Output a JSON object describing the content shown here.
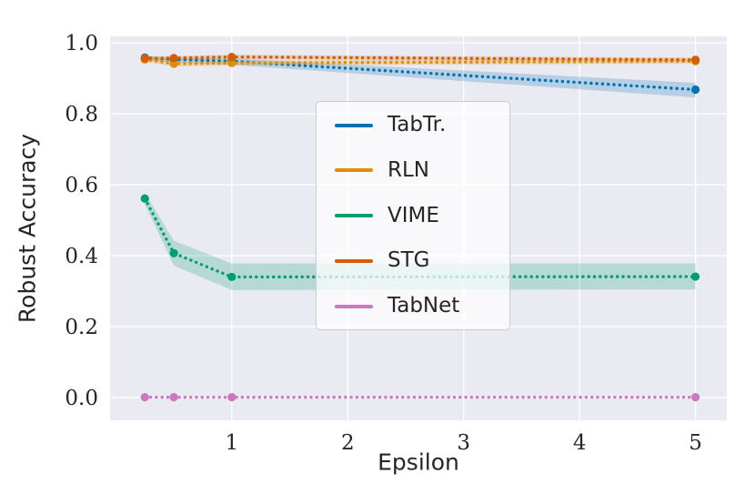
{
  "figure": {
    "background": "#ffffff"
  },
  "chart_data": {
    "type": "line",
    "title": "",
    "xlabel": "Epsilon",
    "ylabel": "Robust Accuracy",
    "line_style": "dotted",
    "marker": "circle",
    "grid": true,
    "legend_position": "center",
    "x": [
      0.25,
      0.5,
      1,
      5
    ],
    "xlim": [
      -0.05,
      5.27
    ],
    "ylim": [
      -0.064,
      1.018
    ],
    "xticks": [
      1,
      2,
      3,
      4,
      5
    ],
    "xtick_labels": [
      "1",
      "2",
      "3",
      "4",
      "5"
    ],
    "yticks": [
      0.0,
      0.2,
      0.4,
      0.6,
      0.8,
      1.0
    ],
    "ytick_labels": [
      "0.0",
      "0.2",
      "0.4",
      "0.6",
      "0.8",
      "1.0"
    ],
    "colors": {
      "background": "#eaeaf2",
      "grid": "#ffffff",
      "text": "#262626",
      "legend_border": "#cccccc"
    },
    "series": [
      {
        "name": "TabTr.",
        "color": "#0173b2",
        "y": [
          0.958,
          0.953,
          0.948,
          0.868
        ],
        "band_lo": [
          0.951,
          0.945,
          0.938,
          0.846
        ],
        "band_hi": [
          0.963,
          0.958,
          0.956,
          0.887
        ]
      },
      {
        "name": "RLN",
        "color": "#de8f05",
        "y": [
          0.953,
          0.941,
          0.943,
          0.948
        ],
        "band_lo": [
          0.946,
          0.933,
          0.936,
          0.941
        ],
        "band_hi": [
          0.96,
          0.949,
          0.95,
          0.955
        ]
      },
      {
        "name": "VIME",
        "color": "#029e73",
        "y": [
          0.561,
          0.407,
          0.34,
          0.341
        ],
        "band_lo": [
          0.545,
          0.372,
          0.303,
          0.305
        ],
        "band_hi": [
          0.577,
          0.442,
          0.378,
          0.378
        ]
      },
      {
        "name": "STG",
        "color": "#d55e00",
        "y": [
          0.956,
          0.957,
          0.96,
          0.952
        ],
        "band_lo": [
          0.95,
          0.951,
          0.954,
          0.946
        ],
        "band_hi": [
          0.962,
          0.963,
          0.966,
          0.958
        ]
      },
      {
        "name": "TabNet",
        "color": "#cc78bc",
        "y": [
          0.001,
          0.001,
          0.001,
          0.001
        ]
      }
    ]
  }
}
